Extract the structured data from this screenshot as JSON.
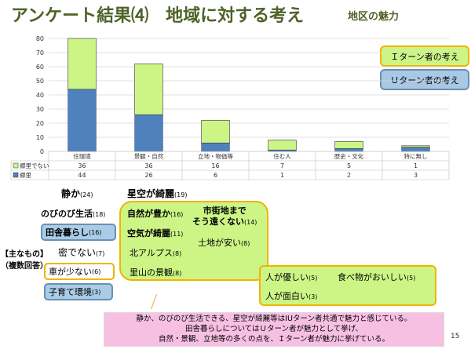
{
  "title": {
    "main": "アンケート結果⑷　地域に対する考え",
    "sub": "地区の魅力"
  },
  "legend": {
    "i_turn": "Ｉターン者の考え",
    "u_turn": "Ｕターン者の考え"
  },
  "chart_data": {
    "type": "bar",
    "stacked": true,
    "categories": [
      "住環境",
      "景観・自然",
      "立地・物価等",
      "住む人",
      "歴史・文化",
      "特に無し"
    ],
    "series": [
      {
        "name": "郷里",
        "values": [
          44,
          26,
          6,
          1,
          2,
          3
        ],
        "color": "#4f81bd"
      },
      {
        "name": "郷里でない",
        "values": [
          36,
          36,
          16,
          7,
          5,
          1
        ],
        "color": "#ccf586"
      }
    ],
    "ylim": [
      0,
      80
    ],
    "yticks": [
      0,
      10,
      20,
      30,
      40,
      50,
      60,
      70,
      80
    ],
    "grid": true,
    "table": true
  },
  "labels": {
    "shizuka": "静か",
    "shizuka_n": "(24)",
    "hoshizora": "星空が綺麗",
    "hoshizora_n": "(19)",
    "nobinobi": "のびのび生活",
    "nobinobi_n": "(18)",
    "inaka": "田舎暮らし",
    "inaka_n": "(16)",
    "omona": "【主なもの】",
    "fukusu": "（複数回答）",
    "mitsu": "密でない",
    "mitsu_n": "(7)",
    "kuruma": "車が少ない",
    "kuruma_n": "(6)",
    "kosodate": "子育て環境",
    "kosodate_n": "(3)",
    "shizen": "自然が豊か",
    "shizen_n": "(16)",
    "shigaichi1": "市街地まで",
    "shigaichi2": "そう遠くない",
    "shigaichi_n": "(14)",
    "kuuki": "空気が綺麗",
    "kuuki_n": "(11)",
    "tochi": "土地が安い",
    "tochi_n": "(8)",
    "alps": "北アルプス",
    "alps_n": "(8)",
    "satoyama": "里山の景観",
    "satoyama_n": "(8)",
    "yasashii": "人が優しい",
    "yasashii_n": "(5)",
    "tabemono": "食べ物がおいしい",
    "tabemono_n": "(5)",
    "omoshiroi": "人が面白い",
    "omoshiroi_n": "(3)"
  },
  "note": {
    "line1": "静か、のびのび生活できる、星空が綺麗等はIUターン者共通で魅力と感じている。",
    "line2": "田舎暮らしについてはＵターン者が魅力として挙げ、",
    "line3": "自然・景観、立地等の多くの点を、Ｉターン者が魅力に挙げている。"
  },
  "page_number": "15"
}
